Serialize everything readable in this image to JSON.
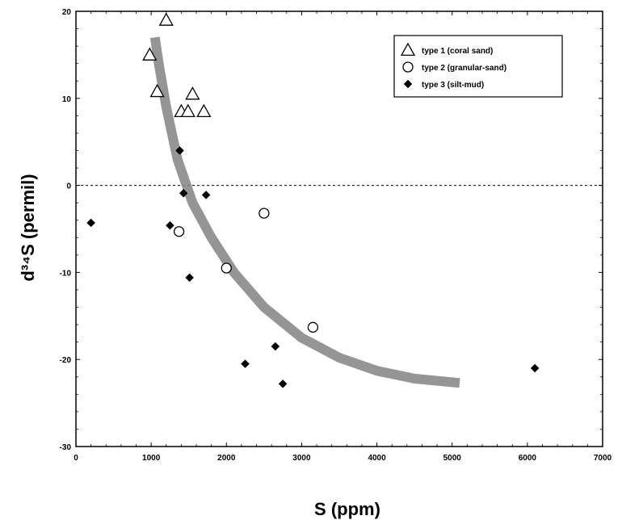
{
  "chart_data": {
    "type": "scatter",
    "xlabel": "S (ppm)",
    "ylabel": "d³⁴S (permil)",
    "xlim": [
      0,
      7000
    ],
    "ylim": [
      -30,
      20
    ],
    "x_ticks": [
      0,
      1000,
      2000,
      3000,
      4000,
      5000,
      6000,
      7000
    ],
    "y_ticks": [
      -30,
      -20,
      -10,
      0,
      10,
      20
    ],
    "x_tick_labels": [
      "0",
      "1000",
      "2000",
      "3000",
      "4000",
      "5000",
      "6000",
      "7000"
    ],
    "y_tick_labels": [
      "-30",
      "-20",
      "-10",
      "0",
      "10",
      "20"
    ],
    "reference_line": {
      "y": 0,
      "style": "dashed"
    },
    "legend_position": "top-right",
    "series": [
      {
        "name": "type 1 (coral sand)",
        "marker": "open-triangle",
        "points": [
          {
            "x": 1200,
            "y": 19
          },
          {
            "x": 980,
            "y": 15
          },
          {
            "x": 1080,
            "y": 10.8
          },
          {
            "x": 1550,
            "y": 10.5
          },
          {
            "x": 1400,
            "y": 8.5
          },
          {
            "x": 1490,
            "y": 8.5
          },
          {
            "x": 1700,
            "y": 8.5
          }
        ]
      },
      {
        "name": "type 2 (granular-sand)",
        "marker": "open-circle",
        "points": [
          {
            "x": 2500,
            "y": -3.2
          },
          {
            "x": 1370,
            "y": -5.3
          },
          {
            "x": 2000,
            "y": -9.5
          },
          {
            "x": 3150,
            "y": -16.3
          }
        ]
      },
      {
        "name": "type 3 (silt-mud)",
        "marker": "filled-diamond",
        "points": [
          {
            "x": 200,
            "y": -4.3
          },
          {
            "x": 1250,
            "y": -4.6
          },
          {
            "x": 1380,
            "y": 4
          },
          {
            "x": 1430,
            "y": -0.9
          },
          {
            "x": 1730,
            "y": -1.1
          },
          {
            "x": 1510,
            "y": -10.6
          },
          {
            "x": 2250,
            "y": -20.5
          },
          {
            "x": 2650,
            "y": -18.5
          },
          {
            "x": 2750,
            "y": -22.8
          },
          {
            "x": 6100,
            "y": -21
          }
        ]
      }
    ],
    "trend_curve": {
      "color": "#8a8a8a",
      "points": [
        {
          "x": 1050,
          "y": 17
        },
        {
          "x": 1100,
          "y": 14
        },
        {
          "x": 1200,
          "y": 9
        },
        {
          "x": 1350,
          "y": 3
        },
        {
          "x": 1550,
          "y": -2
        },
        {
          "x": 1800,
          "y": -6
        },
        {
          "x": 2100,
          "y": -10
        },
        {
          "x": 2500,
          "y": -14
        },
        {
          "x": 3000,
          "y": -17.5
        },
        {
          "x": 3500,
          "y": -19.8
        },
        {
          "x": 4000,
          "y": -21.3
        },
        {
          "x": 4500,
          "y": -22.2
        },
        {
          "x": 5100,
          "y": -22.7
        }
      ]
    }
  }
}
